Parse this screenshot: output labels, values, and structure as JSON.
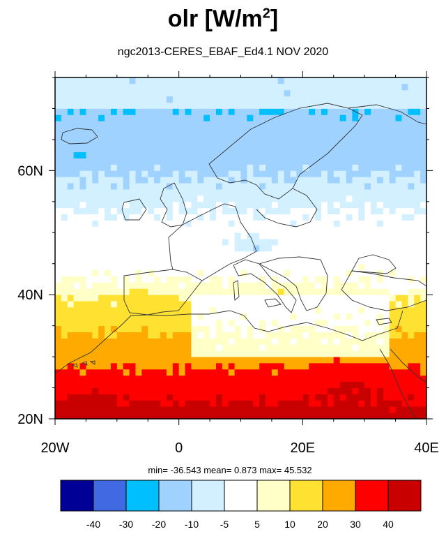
{
  "title": "olr [W/m",
  "title_sup": "2",
  "title_close": "]",
  "subtitle": "ngc2013-CERES_EBAF_Ed4.1  NOV 2020",
  "stats": "min= -36.543  mean=   0.873  max=  45.532",
  "chart_data": {
    "type": "heatmap",
    "title": "olr [W/m2]",
    "subtitle": "ngc2013-CERES_EBAF_Ed4.1  NOV 2020",
    "variable": "olr",
    "units": "W/m2",
    "xlim": [
      -20,
      40
    ],
    "ylim": [
      20,
      75
    ],
    "x_ticks": [
      "20W",
      "0",
      "20E",
      "40E"
    ],
    "y_ticks": [
      "20N",
      "40N",
      "60N"
    ],
    "stats": {
      "min": -36.543,
      "mean": 0.873,
      "max": 45.532
    },
    "colorbar": {
      "levels": [
        "-40",
        "-30",
        "-20",
        "-10",
        "-5",
        "5",
        "10",
        "20",
        "30",
        "40"
      ],
      "colors": [
        "#000096",
        "#4169e1",
        "#00bfff",
        "#a0d2ff",
        "#d2f0ff",
        "#ffffff",
        "#ffffc8",
        "#ffe132",
        "#ffaa00",
        "#ff0000",
        "#c80000"
      ],
      "orientation": "horizontal",
      "placement": "bottom"
    }
  }
}
